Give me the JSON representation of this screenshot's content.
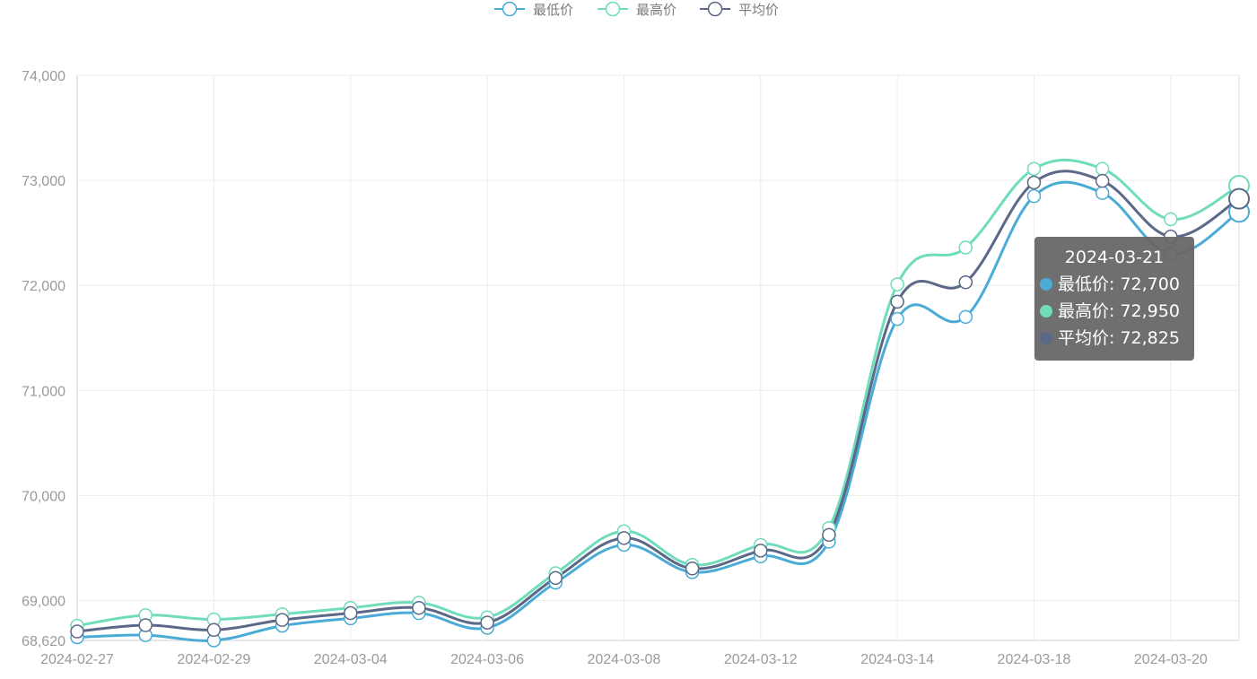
{
  "chart_data": {
    "type": "line",
    "title": "",
    "xlabel": "",
    "ylabel": "",
    "x": [
      "2024-02-27",
      "2024-02-28",
      "2024-02-29",
      "2024-03-01",
      "2024-03-04",
      "2024-03-05",
      "2024-03-06",
      "2024-03-07",
      "2024-03-08",
      "2024-03-11",
      "2024-03-12",
      "2024-03-13",
      "2024-03-14",
      "2024-03-15",
      "2024-03-18",
      "2024-03-19",
      "2024-03-20",
      "2024-03-21"
    ],
    "x_tick_labels": [
      "2024-02-27",
      "2024-02-29",
      "2024-03-04",
      "2024-03-06",
      "2024-03-08",
      "2024-03-12",
      "2024-03-14",
      "2024-03-18",
      "2024-03-20"
    ],
    "y_tick_labels": [
      "68,620",
      "69,000",
      "70,000",
      "71,000",
      "72,000",
      "73,000",
      "74,000"
    ],
    "y_ticks": [
      68620,
      69000,
      70000,
      71000,
      72000,
      73000,
      74000
    ],
    "ylim": [
      68620,
      74000
    ],
    "grid": true,
    "legend_position": "top-center",
    "series": [
      {
        "name": "最低价",
        "color": "#4aabd6",
        "values": [
          68650,
          68670,
          68620,
          68760,
          68830,
          68880,
          68740,
          69170,
          69530,
          69270,
          69420,
          69560,
          71680,
          71700,
          72850,
          72880,
          72300,
          72700
        ]
      },
      {
        "name": "最高价",
        "color": "#6fdcbc",
        "values": [
          68760,
          68860,
          68820,
          68870,
          68930,
          68980,
          68840,
          69260,
          69660,
          69340,
          69530,
          69690,
          72010,
          72360,
          73110,
          73110,
          72630,
          72950
        ]
      },
      {
        "name": "平均价",
        "color": "#5b6887",
        "values": [
          68705,
          68765,
          68720,
          68815,
          68880,
          68930,
          68790,
          69215,
          69595,
          69305,
          69475,
          69625,
          71845,
          72030,
          72980,
          72995,
          72465,
          72825
        ]
      }
    ],
    "tooltip": {
      "title": "2024-03-21",
      "rows": [
        "最低价: 72,700",
        "最高价: 72,950",
        "平均价: 72,825"
      ]
    }
  }
}
